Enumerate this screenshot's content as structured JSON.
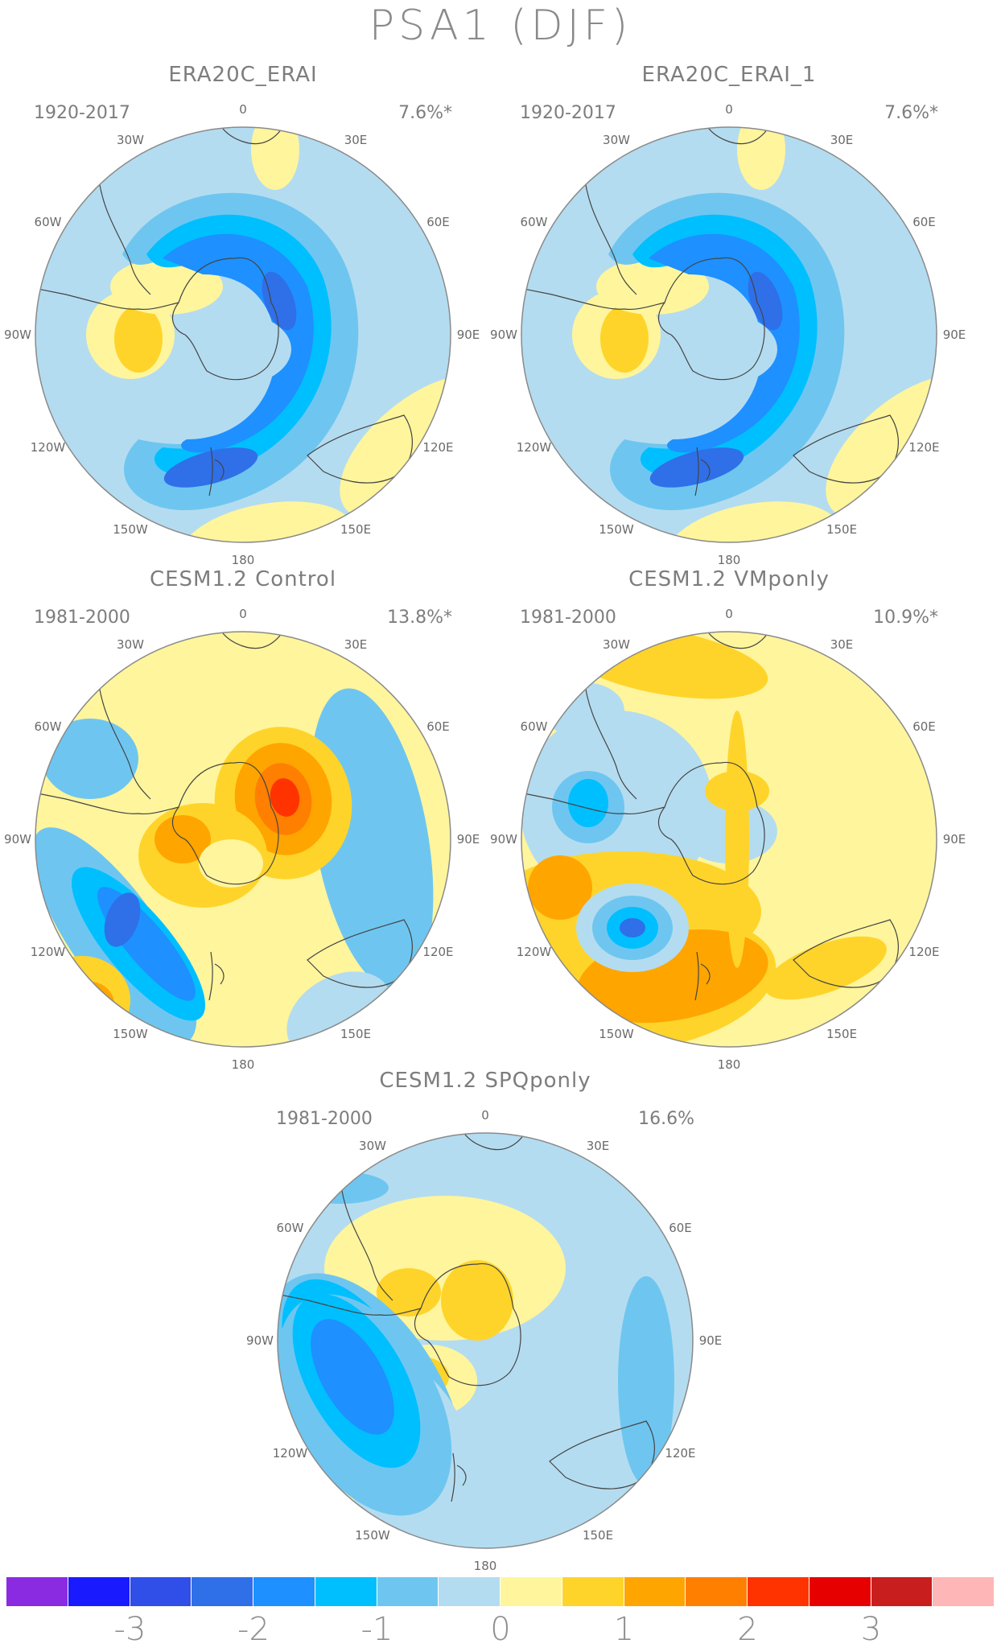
{
  "title": "PSA1 (DJF)",
  "panels": [
    {
      "title": "ERA20C_ERAI",
      "period": "1920-2017",
      "variance": "7.6%*",
      "pattern": "era"
    },
    {
      "title": "ERA20C_ERAI_1",
      "period": "1920-2017",
      "variance": "7.6%*",
      "pattern": "era"
    },
    {
      "title": "CESM1.2 Control",
      "period": "1981-2000",
      "variance": "13.8%*",
      "pattern": "control"
    },
    {
      "title": "CESM1.2 VMponly",
      "period": "1981-2000",
      "variance": "10.9%*",
      "pattern": "vmp"
    },
    {
      "title": "CESM1.2 SPQponly",
      "period": "1981-2000",
      "variance": "16.6%",
      "pattern": "spq"
    }
  ],
  "longitude_labels": [
    "0",
    "30E",
    "60E",
    "90E",
    "120E",
    "150E",
    "180",
    "150W",
    "120W",
    "90W",
    "60W",
    "30W"
  ],
  "colorbar": {
    "colors": [
      "#8a2be2",
      "#1a1aff",
      "#2f4fe8",
      "#2f6fe8",
      "#1e90ff",
      "#00bfff",
      "#6ec6f0",
      "#b4dcf0",
      "#fff59d",
      "#ffd42a",
      "#ffa500",
      "#ff7f00",
      "#ff3300",
      "#e60000",
      "#c81e1e",
      "#ffb6b6"
    ],
    "labels": [
      "-3",
      "-2",
      "-1",
      "0",
      "1",
      "2",
      "3"
    ]
  }
}
